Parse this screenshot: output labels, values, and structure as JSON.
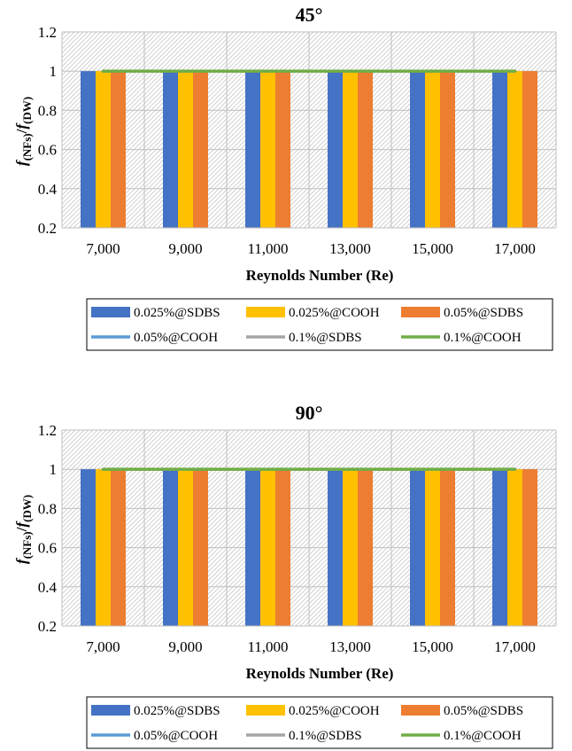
{
  "chart_data": [
    {
      "type": "bar",
      "title": "45°",
      "xlabel": "Reynolds Number (Re)",
      "ylabel_main": "f",
      "ylabel_sub1": "(NFs)",
      "ylabel_sep": "/",
      "ylabel_main2": "f",
      "ylabel_sub2": "(DW)",
      "categories": [
        "7,000",
        "9,000",
        "11,000",
        "13,000",
        "15,000",
        "17,000"
      ],
      "ylim": [
        0.2,
        1.2
      ],
      "yticks": [
        "0.2",
        "0.4",
        "0.6",
        "0.8",
        "1",
        "1.2"
      ],
      "grid": true,
      "series": [
        {
          "name": "0.025%@SDBS",
          "kind": "bar",
          "color": "#4472C4",
          "values": [
            1,
            1,
            1,
            1,
            1,
            1
          ]
        },
        {
          "name": "0.025%@COOH",
          "kind": "bar",
          "color": "#FFC000",
          "values": [
            1,
            1,
            1,
            1,
            1,
            1
          ]
        },
        {
          "name": "0.05%@SDBS",
          "kind": "bar",
          "color": "#ED7D31",
          "values": [
            1,
            1,
            1,
            1,
            1,
            1
          ]
        },
        {
          "name": "0.05%@COOH",
          "kind": "line",
          "color": "#5B9BD5",
          "values": [
            1,
            1,
            1,
            1,
            1,
            1
          ]
        },
        {
          "name": "0.1%@SDBS",
          "kind": "line",
          "color": "#A5A5A5",
          "values": [
            1,
            1,
            1,
            1,
            1,
            1
          ]
        },
        {
          "name": "0.1%@COOH",
          "kind": "line",
          "color": "#70AD47",
          "values": [
            1,
            1,
            1,
            1,
            1,
            1
          ]
        }
      ],
      "legend_position": "bottom"
    },
    {
      "type": "bar",
      "title": "90°",
      "xlabel": "Reynolds Number (Re)",
      "ylabel_main": "f",
      "ylabel_sub1": "(NFs)",
      "ylabel_sep": "/",
      "ylabel_main2": "f",
      "ylabel_sub2": "(DW)",
      "categories": [
        "7,000",
        "9,000",
        "11,000",
        "13,000",
        "15,000",
        "17,000"
      ],
      "ylim": [
        0.2,
        1.2
      ],
      "yticks": [
        "0.2",
        "0.4",
        "0.6",
        "0.8",
        "1",
        "1.2"
      ],
      "grid": true,
      "series": [
        {
          "name": "0.025%@SDBS",
          "kind": "bar",
          "color": "#4472C4",
          "values": [
            1,
            1,
            1,
            1,
            1,
            1
          ]
        },
        {
          "name": "0.025%@COOH",
          "kind": "bar",
          "color": "#FFC000",
          "values": [
            1,
            1,
            1,
            1,
            1,
            1
          ]
        },
        {
          "name": "0.05%@SDBS",
          "kind": "bar",
          "color": "#ED7D31",
          "values": [
            1,
            1,
            1,
            1,
            1,
            1
          ]
        },
        {
          "name": "0.05%@COOH",
          "kind": "line",
          "color": "#5B9BD5",
          "values": [
            1,
            1,
            1,
            1,
            1,
            1
          ]
        },
        {
          "name": "0.1%@SDBS",
          "kind": "line",
          "color": "#A5A5A5",
          "values": [
            1,
            1,
            1,
            1,
            1,
            1
          ]
        },
        {
          "name": "0.1%@COOH",
          "kind": "line",
          "color": "#70AD47",
          "values": [
            1,
            1,
            1,
            1,
            1,
            1
          ]
        }
      ],
      "legend_position": "bottom"
    }
  ]
}
